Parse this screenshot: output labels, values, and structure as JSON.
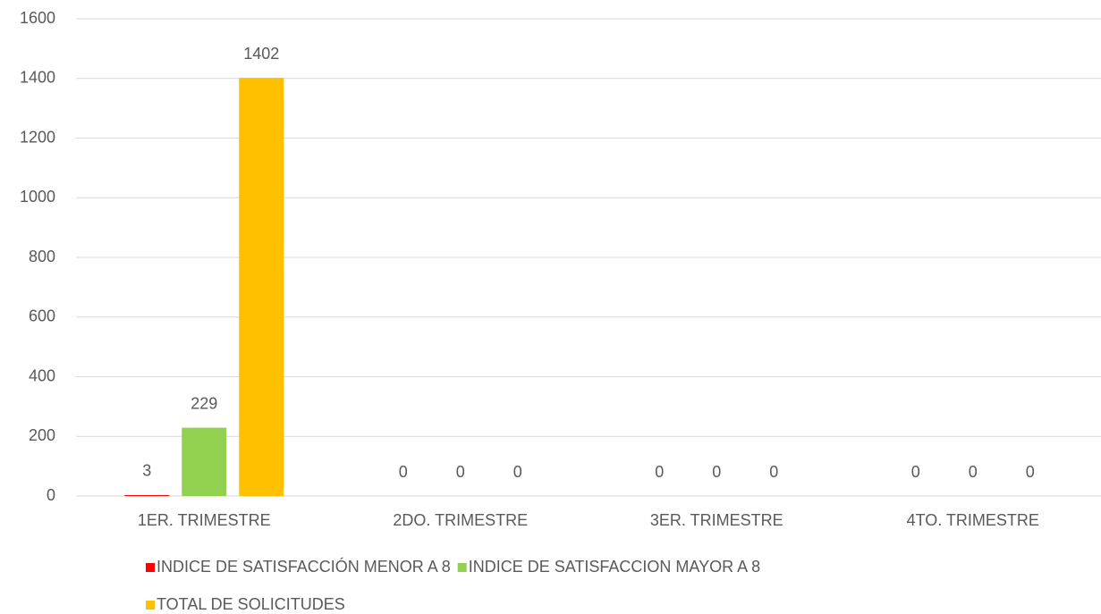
{
  "chart_data": {
    "type": "bar",
    "categories": [
      "1ER. TRIMESTRE",
      "2DO. TRIMESTRE",
      "3ER. TRIMESTRE",
      "4TO. TRIMESTRE"
    ],
    "series": [
      {
        "name": "INDICE DE SATISFACCIÓN MENOR A 8",
        "color": "#ff0000",
        "values": [
          3,
          0,
          0,
          0
        ]
      },
      {
        "name": "INDICE DE SATISFACCION MAYOR A 8",
        "color": "#92d050",
        "values": [
          229,
          0,
          0,
          0
        ]
      },
      {
        "name": "TOTAL DE SOLICITUDES",
        "color": "#ffc000",
        "values": [
          1402,
          0,
          0,
          0
        ]
      }
    ],
    "ylim": [
      0,
      1600
    ],
    "yticks": [
      0,
      200,
      400,
      600,
      800,
      1000,
      1200,
      1400,
      1600
    ],
    "grid": true,
    "legend": "bottom"
  }
}
